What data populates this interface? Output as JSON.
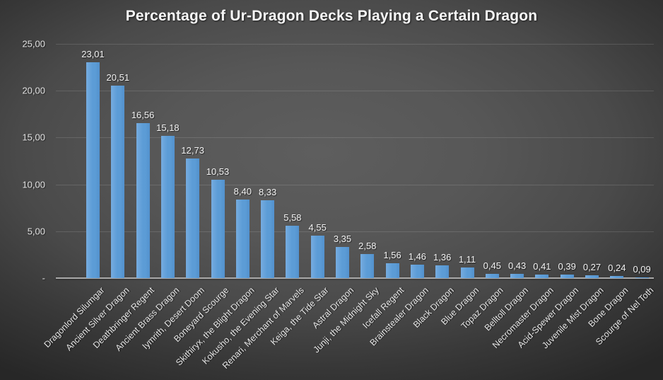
{
  "title": "Percentage of Ur-Dragon Decks Playing a Certain Dragon",
  "colors": {
    "bar_fill": "#5B9BD5",
    "bar_fill_light": "#76ACE0",
    "background_center": "#5E5E5E",
    "background_edge": "#272727",
    "axis_line": "#A9A9A9",
    "gridline": "rgba(255,255,255,0.13)",
    "label_text": "#E6E6E6",
    "title_text": "#F7F7F7"
  },
  "chart_data": {
    "type": "bar",
    "title": "Percentage of Ur-Dragon Decks Playing a Certain Dragon",
    "xlabel": "",
    "ylabel": "",
    "ylim": [
      0,
      25
    ],
    "grid": true,
    "legend": false,
    "y_ticks": [
      {
        "label": "25,00",
        "value": 25
      },
      {
        "label": "20,00",
        "value": 20
      },
      {
        "label": "15,00",
        "value": 15
      },
      {
        "label": "10,00",
        "value": 10
      },
      {
        "label": "5,00",
        "value": 5
      },
      {
        "label": "-",
        "value": 0
      }
    ],
    "categories": [
      "Dragonlord Silumgar",
      "Ancient Silver Dragon",
      "Deathbringer Regent",
      "Ancient Brass Dragon",
      "Iymrith, Desert Doom",
      "Boneyard Scourge",
      "Skithiryx, the Blight Dragon",
      "Kokusho, the Evening Star",
      "Renari, Merchant of Marvels",
      "Keiga, the Tide Star",
      "Astral Dragon",
      "Junji, the Midnight Sky",
      "Icefall Regent",
      "Brainstealer Dragon",
      "Black Dragon",
      "Blue Dragon",
      "Topaz Dragon",
      "Belltoll Dragon",
      "Necromaster Dragon",
      "Acid-Spewer Dragon",
      "Juvenile Mist Dragon",
      "Bone Dragon",
      "Scourge of Nel Toth"
    ],
    "values": [
      23.01,
      20.51,
      16.56,
      15.18,
      12.73,
      10.53,
      8.4,
      8.33,
      5.58,
      4.55,
      3.35,
      2.58,
      1.56,
      1.46,
      1.36,
      1.11,
      0.45,
      0.43,
      0.41,
      0.39,
      0.27,
      0.24,
      0.09
    ],
    "value_labels": [
      "23,01",
      "20,51",
      "16,56",
      "15,18",
      "12,73",
      "10,53",
      "8,40",
      "8,33",
      "5,58",
      "4,55",
      "3,35",
      "2,58",
      "1,56",
      "1,46",
      "1,36",
      "1,11",
      "0,45",
      "0,43",
      "0,41",
      "0,39",
      "0,27",
      "0,24",
      "0,09"
    ]
  }
}
